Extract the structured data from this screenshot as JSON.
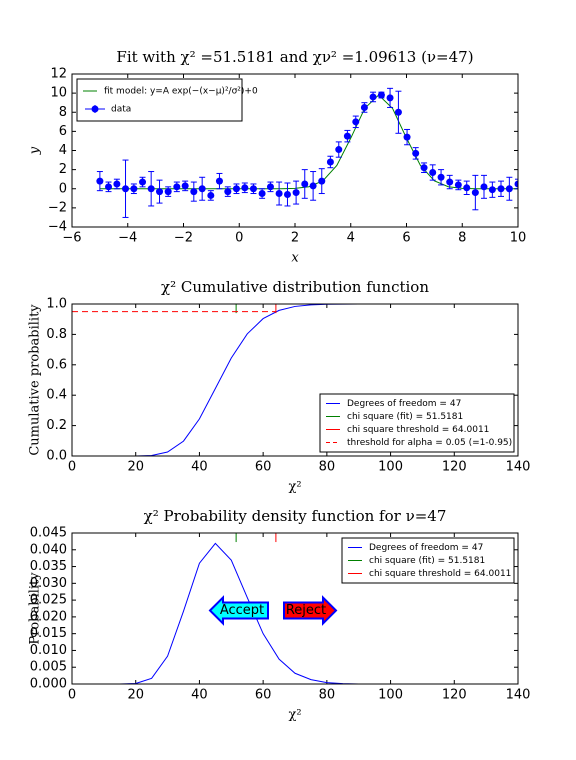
{
  "chart_data": [
    {
      "type": "line",
      "title": "Fit with χ² =51.5181 and χν² =1.09613 (ν=47)",
      "xlabel": "x",
      "ylabel": "y",
      "xlim": [
        -6,
        10
      ],
      "ylim": [
        -4,
        12
      ],
      "xticks": [
        {
          "value": -6,
          "label": "−6"
        },
        {
          "value": -4,
          "label": "−4"
        },
        {
          "value": -2,
          "label": "−2"
        },
        0,
        2,
        4,
        6,
        8,
        10
      ],
      "yticks": [
        {
          "value": -4,
          "label": "−4"
        },
        {
          "value": -2,
          "label": "−2"
        },
        0,
        2,
        4,
        6,
        8,
        10,
        12
      ],
      "legend": "upper left",
      "series": [
        {
          "name": "fit model: y=A exp(−(x−μ)²/σ²)+0",
          "color": "#008000",
          "x": [
            -5,
            -4.5,
            -4,
            -3.5,
            -3,
            -2.5,
            -2,
            -1.5,
            -1,
            -0.5,
            0,
            0.5,
            1,
            1.5,
            2,
            2.5,
            3,
            3.5,
            4,
            4.5,
            5,
            5.5,
            6,
            6.5,
            7,
            7.5,
            8,
            8.5,
            9,
            9.5,
            10
          ],
          "values": [
            0,
            0,
            0,
            0,
            0,
            0,
            0,
            0,
            0,
            0,
            0,
            0,
            0,
            0,
            0.04,
            0.21,
            0.83,
            2.44,
            5.29,
            8.4,
            9.8,
            8.4,
            5.29,
            2.44,
            0.83,
            0.21,
            0.04,
            0,
            0,
            0,
            0
          ]
        },
        {
          "name": "data",
          "color": "#0000ff",
          "x": [
            -5.0,
            -4.69,
            -4.39,
            -4.08,
            -3.78,
            -3.47,
            -3.16,
            -2.86,
            -2.55,
            -2.24,
            -1.94,
            -1.63,
            -1.33,
            -1.02,
            -0.71,
            -0.41,
            -0.1,
            0.2,
            0.51,
            0.82,
            1.12,
            1.43,
            1.73,
            2.04,
            2.35,
            2.65,
            2.96,
            3.27,
            3.57,
            3.88,
            4.18,
            4.49,
            4.8,
            5.1,
            5.41,
            5.71,
            6.02,
            6.33,
            6.63,
            6.94,
            7.24,
            7.55,
            7.86,
            8.16,
            8.47,
            8.78,
            9.08,
            9.39,
            9.69,
            10.0
          ],
          "values": [
            0.8,
            0.2,
            0.5,
            0.0,
            0.0,
            0.7,
            0.0,
            -0.3,
            -0.3,
            0.2,
            0.3,
            -0.3,
            0.0,
            -0.7,
            0.8,
            -0.3,
            0.0,
            0.1,
            0.0,
            -0.5,
            0.2,
            -0.5,
            -0.6,
            -0.4,
            0.5,
            0.3,
            0.8,
            2.8,
            4.1,
            5.5,
            7.0,
            8.5,
            9.6,
            9.8,
            9.5,
            8.0,
            5.4,
            3.7,
            2.2,
            1.7,
            1.2,
            0.7,
            0.4,
            0.1,
            -0.4,
            0.2,
            -0.1,
            0.0,
            0.0,
            0.5
          ],
          "errors": [
            1.0,
            0.5,
            0.5,
            3.0,
            0.5,
            0.5,
            1.8,
            1.2,
            0.5,
            0.5,
            0.5,
            1.0,
            1.2,
            0.5,
            0.8,
            0.5,
            0.5,
            0.5,
            0.5,
            0.5,
            0.5,
            1.2,
            1.2,
            1.2,
            1.5,
            1.5,
            1.3,
            0.6,
            0.8,
            0.6,
            0.6,
            0.5,
            0.5,
            0.3,
            1.0,
            2.2,
            0.8,
            0.6,
            0.5,
            0.8,
            0.8,
            0.7,
            0.5,
            0.7,
            1.8,
            1.2,
            0.8,
            0.8,
            1.2,
            0.5
          ]
        }
      ]
    },
    {
      "type": "line",
      "title": "χ² Cumulative distribution function",
      "xlabel": "χ²",
      "ylabel": "Cumulative probability",
      "xlim": [
        0,
        140
      ],
      "ylim": [
        0,
        1
      ],
      "xticks": [
        0,
        20,
        40,
        60,
        80,
        100,
        120,
        140
      ],
      "yticks": [
        {
          "value": 0,
          "label": "0.0"
        },
        {
          "value": 0.2,
          "label": "0.2"
        },
        {
          "value": 0.4,
          "label": "0.4"
        },
        {
          "value": 0.6,
          "label": "0.6"
        },
        {
          "value": 0.8,
          "label": "0.8"
        },
        {
          "value": 1,
          "label": "1.0"
        }
      ],
      "legend": "lower right",
      "series": [
        {
          "name": "Degrees of freedom = 47",
          "color": "#0000ff",
          "x": [
            0,
            5,
            10,
            15,
            20,
            25,
            30,
            35,
            40,
            45,
            50,
            55,
            60,
            65,
            70,
            75,
            80,
            85,
            90,
            95,
            100,
            105,
            110,
            115,
            120,
            125,
            130,
            135
          ],
          "values": [
            0,
            0,
            0,
            0,
            0.0002,
            0.0036,
            0.026,
            0.098,
            0.244,
            0.444,
            0.645,
            0.803,
            0.904,
            0.958,
            0.984,
            0.994,
            0.998,
            0.9995,
            1,
            1,
            1,
            1,
            1,
            1,
            1,
            1,
            1,
            1
          ]
        },
        {
          "name": "chi square (fit) = 51.5181",
          "color": "#008000",
          "vline": 51.5181
        },
        {
          "name": "chi square threshold = 64.0011",
          "color": "#ff0000",
          "vline": 64.0011
        },
        {
          "name": "threshold for alpha = 0.05 (=1-0.95)",
          "color": "#ff0000",
          "hline": 0.95,
          "dashed": true
        }
      ]
    },
    {
      "type": "line",
      "title": "χ² Probability density function for ν=47",
      "xlabel": "χ²",
      "ylabel": "Probability",
      "xlim": [
        0,
        140
      ],
      "ylim": [
        0,
        0.045
      ],
      "xticks": [
        0,
        20,
        40,
        60,
        80,
        100,
        120,
        140
      ],
      "yticks": [
        {
          "value": 0,
          "label": "0.000"
        },
        {
          "value": 0.005,
          "label": "0.005"
        },
        {
          "value": 0.01,
          "label": "0.010"
        },
        {
          "value": 0.015,
          "label": "0.015"
        },
        {
          "value": 0.02,
          "label": "0.020"
        },
        {
          "value": 0.025,
          "label": "0.025"
        },
        {
          "value": 0.03,
          "label": "0.030"
        },
        {
          "value": 0.035,
          "label": "0.035"
        },
        {
          "value": 0.04,
          "label": "0.040"
        },
        {
          "value": 0.045,
          "label": "0.045"
        }
      ],
      "legend": "upper right",
      "annotations": [
        {
          "text": "Accept",
          "color": "#00ffff"
        },
        {
          "text": "Reject",
          "color": "#ff0000"
        }
      ],
      "series": [
        {
          "name": "Degrees of freedom = 47",
          "color": "#0000ff",
          "x": [
            0,
            5,
            10,
            15,
            20,
            25,
            30,
            35,
            40,
            45,
            50,
            55,
            60,
            65,
            70,
            75,
            80,
            85,
            90,
            95,
            100,
            105,
            110,
            115,
            120,
            125,
            130,
            135
          ],
          "values": [
            0,
            0,
            0,
            0,
            0.00014,
            0.0017,
            0.0083,
            0.0217,
            0.036,
            0.0419,
            0.0369,
            0.0258,
            0.015,
            0.0074,
            0.0032,
            0.0013,
            0.0004,
            0.0001,
            0,
            0,
            0,
            0,
            0,
            0,
            0,
            0,
            0,
            0
          ]
        },
        {
          "name": "chi square (fit) = 51.5181",
          "color": "#008000",
          "vline": 51.5181
        },
        {
          "name": "chi square threshold = 64.0011",
          "color": "#ff0000",
          "vline": 64.0011
        }
      ]
    }
  ]
}
